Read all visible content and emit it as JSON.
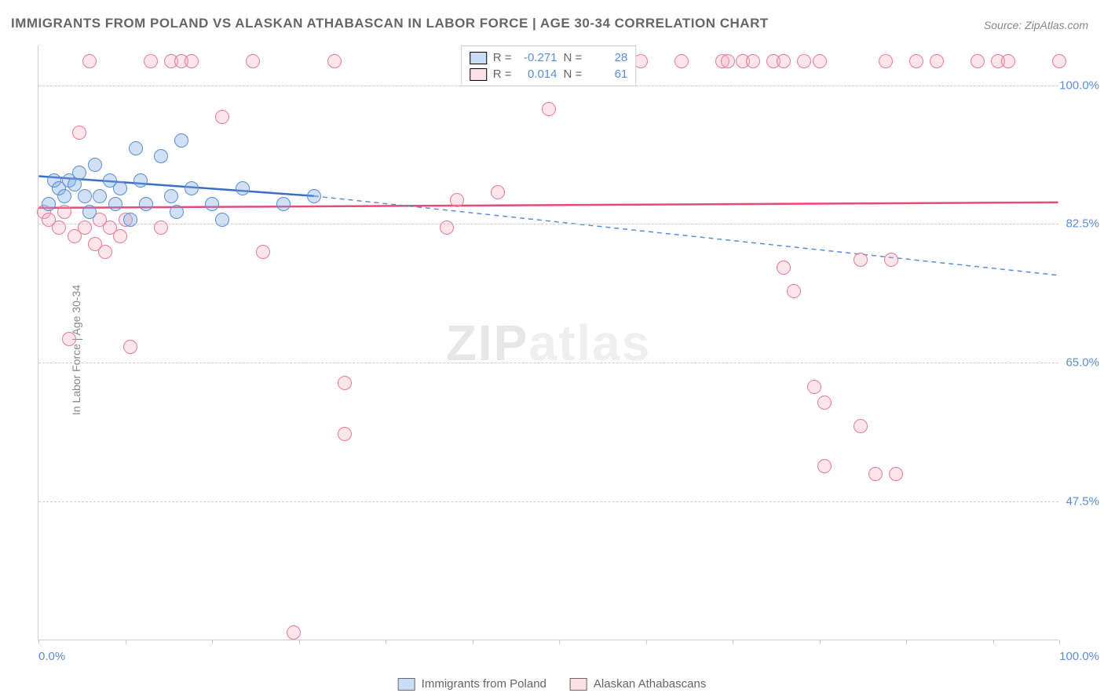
{
  "title": "IMMIGRANTS FROM POLAND VS ALASKAN ATHABASCAN IN LABOR FORCE | AGE 30-34 CORRELATION CHART",
  "source": "Source: ZipAtlas.com",
  "ylabel": "In Labor Force | Age 30-34",
  "watermark_zip": "ZIP",
  "watermark_atlas": "atlas",
  "chart": {
    "type": "scatter",
    "xlim": [
      0,
      100
    ],
    "ylim": [
      30,
      105
    ],
    "yticks": [
      {
        "v": 100.0,
        "label": "100.0%"
      },
      {
        "v": 82.5,
        "label": "82.5%"
      },
      {
        "v": 65.0,
        "label": "65.0%"
      },
      {
        "v": 47.5,
        "label": "47.5%"
      }
    ],
    "xticks_minor": [
      0,
      8.5,
      17,
      25.5,
      34,
      42.5,
      51,
      59.5,
      68,
      76.5,
      85,
      93.5,
      100
    ],
    "xtick_left": "0.0%",
    "xtick_right": "100.0%",
    "background_color": "#ffffff",
    "grid_color": "#cccccc",
    "series": {
      "blue": {
        "label": "Immigrants from Poland",
        "color_fill": "rgba(120,170,230,0.35)",
        "color_stroke": "#5b8dd6",
        "R": "-0.271",
        "N": "28",
        "points": [
          {
            "x": 1,
            "y": 85
          },
          {
            "x": 1.5,
            "y": 88
          },
          {
            "x": 2,
            "y": 87
          },
          {
            "x": 2.5,
            "y": 86
          },
          {
            "x": 3,
            "y": 88
          },
          {
            "x": 3.5,
            "y": 87.5
          },
          {
            "x": 4,
            "y": 89
          },
          {
            "x": 4.5,
            "y": 86
          },
          {
            "x": 5,
            "y": 84
          },
          {
            "x": 5.5,
            "y": 90
          },
          {
            "x": 6,
            "y": 86
          },
          {
            "x": 7,
            "y": 88
          },
          {
            "x": 7.5,
            "y": 85
          },
          {
            "x": 8,
            "y": 87
          },
          {
            "x": 9,
            "y": 83
          },
          {
            "x": 9.5,
            "y": 92
          },
          {
            "x": 10,
            "y": 88
          },
          {
            "x": 10.5,
            "y": 85
          },
          {
            "x": 12,
            "y": 91
          },
          {
            "x": 13,
            "y": 86
          },
          {
            "x": 13.5,
            "y": 84
          },
          {
            "x": 14,
            "y": 93
          },
          {
            "x": 15,
            "y": 87
          },
          {
            "x": 17,
            "y": 85
          },
          {
            "x": 18,
            "y": 83
          },
          {
            "x": 20,
            "y": 87
          },
          {
            "x": 24,
            "y": 85
          },
          {
            "x": 27,
            "y": 86
          }
        ],
        "trend_y_start": 88.5,
        "trend_y_solid_end_x": 27,
        "trend_y_solid_end_y": 86,
        "trend_y_dashed_end": 76
      },
      "pink": {
        "label": "Alaskan Athabascans",
        "color_fill": "rgba(245,170,190,0.3)",
        "color_stroke": "#e77a9a",
        "R": "0.014",
        "N": "61",
        "points": [
          {
            "x": 0.5,
            "y": 84
          },
          {
            "x": 1,
            "y": 83
          },
          {
            "x": 2,
            "y": 82
          },
          {
            "x": 2.5,
            "y": 84
          },
          {
            "x": 3,
            "y": 68
          },
          {
            "x": 3.5,
            "y": 81
          },
          {
            "x": 4,
            "y": 94
          },
          {
            "x": 4.5,
            "y": 82
          },
          {
            "x": 5,
            "y": 103
          },
          {
            "x": 5.5,
            "y": 80
          },
          {
            "x": 6,
            "y": 83
          },
          {
            "x": 6.5,
            "y": 79
          },
          {
            "x": 7,
            "y": 82
          },
          {
            "x": 8,
            "y": 81
          },
          {
            "x": 8.5,
            "y": 83
          },
          {
            "x": 9,
            "y": 67
          },
          {
            "x": 11,
            "y": 103
          },
          {
            "x": 12,
            "y": 82
          },
          {
            "x": 13,
            "y": 103
          },
          {
            "x": 14,
            "y": 103
          },
          {
            "x": 15,
            "y": 103
          },
          {
            "x": 18,
            "y": 96
          },
          {
            "x": 21,
            "y": 103
          },
          {
            "x": 22,
            "y": 79
          },
          {
            "x": 25,
            "y": 31
          },
          {
            "x": 29,
            "y": 103
          },
          {
            "x": 30,
            "y": 56
          },
          {
            "x": 30,
            "y": 62.5
          },
          {
            "x": 40,
            "y": 82
          },
          {
            "x": 41,
            "y": 85.5
          },
          {
            "x": 43,
            "y": 103
          },
          {
            "x": 45,
            "y": 86.5
          },
          {
            "x": 49,
            "y": 103
          },
          {
            "x": 50,
            "y": 97
          },
          {
            "x": 59,
            "y": 103
          },
          {
            "x": 63,
            "y": 103
          },
          {
            "x": 67,
            "y": 103
          },
          {
            "x": 67.5,
            "y": 103
          },
          {
            "x": 69,
            "y": 103
          },
          {
            "x": 70,
            "y": 103
          },
          {
            "x": 72,
            "y": 103
          },
          {
            "x": 73,
            "y": 77
          },
          {
            "x": 73,
            "y": 103
          },
          {
            "x": 74,
            "y": 74
          },
          {
            "x": 75,
            "y": 103
          },
          {
            "x": 76,
            "y": 62
          },
          {
            "x": 76.5,
            "y": 103
          },
          {
            "x": 77,
            "y": 60
          },
          {
            "x": 77,
            "y": 52
          },
          {
            "x": 80.5,
            "y": 57
          },
          {
            "x": 80.5,
            "y": 78
          },
          {
            "x": 82,
            "y": 51
          },
          {
            "x": 83,
            "y": 103
          },
          {
            "x": 83.5,
            "y": 78
          },
          {
            "x": 84,
            "y": 51
          },
          {
            "x": 86,
            "y": 103
          },
          {
            "x": 88,
            "y": 103
          },
          {
            "x": 92,
            "y": 103
          },
          {
            "x": 94,
            "y": 103
          },
          {
            "x": 95,
            "y": 103
          },
          {
            "x": 100,
            "y": 103
          }
        ],
        "trend_y_start": 84.5,
        "trend_y_end": 85.2
      }
    }
  },
  "legend_top": {
    "r_label": "R =",
    "n_label": "N ="
  }
}
